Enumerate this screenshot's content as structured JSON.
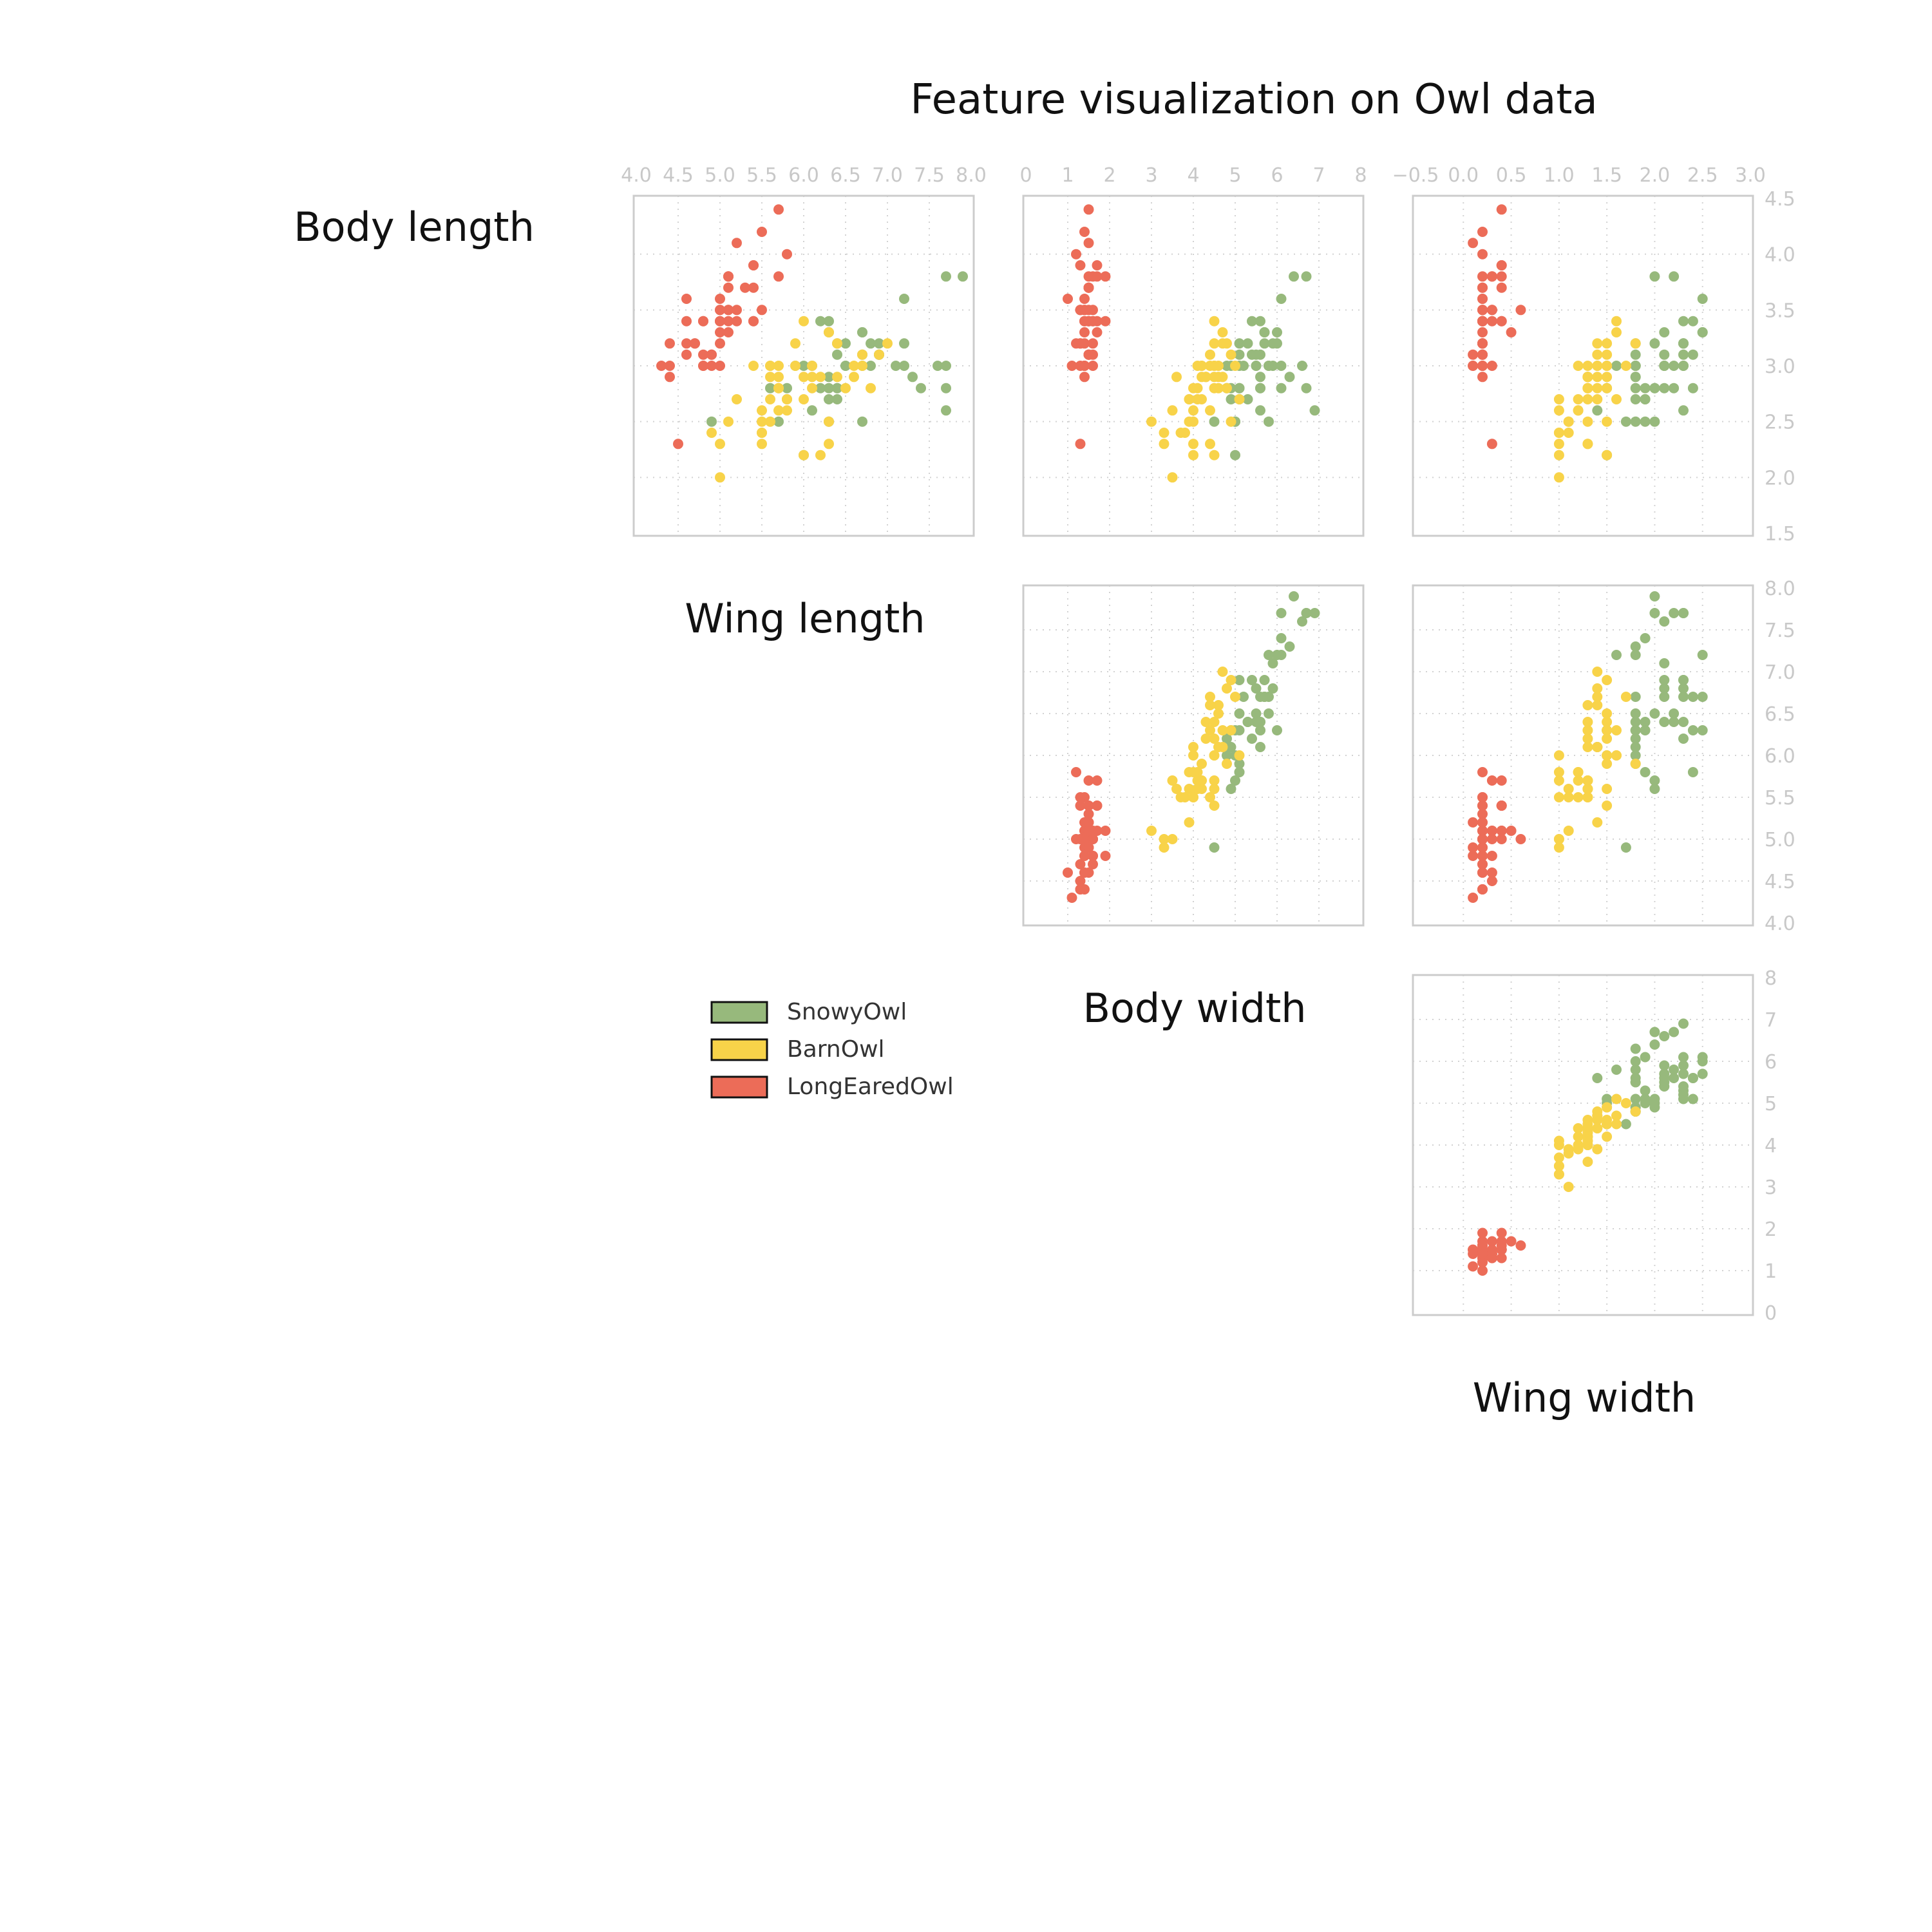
{
  "chart_data": {
    "type": "scatter",
    "title": "Feature visualization on Owl data",
    "variables": [
      "Body length",
      "Body width",
      "Wing length",
      "Wing width"
    ],
    "axes": {
      "x_body_length": {
        "ticks": [
          "4.0",
          "4.5",
          "5.0",
          "5.5",
          "6.0",
          "6.5",
          "7.0",
          "7.5",
          "8.0"
        ],
        "range": [
          4.0,
          8.0
        ]
      },
      "x_wing_length": {
        "ticks": [
          "0",
          "1",
          "2",
          "3",
          "4",
          "5",
          "6",
          "7",
          "8"
        ],
        "range": [
          0,
          8
        ]
      },
      "x_wing_width": {
        "ticks": [
          "−0.5",
          "0.0",
          "0.5",
          "1.0",
          "1.5",
          "2.0",
          "2.5",
          "3.0"
        ],
        "range": [
          -0.5,
          3.0
        ]
      },
      "y_body_width": {
        "ticks": [
          "1.5",
          "2.0",
          "2.5",
          "3.0",
          "3.5",
          "4.0",
          "4.5"
        ],
        "range": [
          1.5,
          4.5
        ]
      },
      "y_body_length": {
        "ticks": [
          "4.0",
          "4.5",
          "5.0",
          "5.5",
          "6.0",
          "6.5",
          "7.0",
          "7.5",
          "8.0"
        ],
        "range": [
          4.0,
          8.0
        ]
      },
      "y_wing_length": {
        "ticks": [
          "0",
          "1",
          "2",
          "3",
          "4",
          "5",
          "6",
          "7",
          "8"
        ],
        "range": [
          0,
          8
        ]
      }
    },
    "panels": [
      {
        "x": "Body length",
        "y": "Body width",
        "xaxis": "x_body_length",
        "yaxis": "y_body_width"
      },
      {
        "x": "Wing length",
        "y": "Body width",
        "xaxis": "x_wing_length",
        "yaxis": "y_body_width"
      },
      {
        "x": "Wing width",
        "y": "Body width",
        "xaxis": "x_wing_width",
        "yaxis": "y_body_width"
      },
      {
        "x": "Wing length",
        "y": "Body length",
        "xaxis": "x_wing_length",
        "yaxis": "y_body_length"
      },
      {
        "x": "Wing width",
        "y": "Body length",
        "xaxis": "x_wing_width",
        "yaxis": "y_body_length"
      },
      {
        "x": "Wing width",
        "y": "Wing length",
        "xaxis": "x_wing_width",
        "yaxis": "y_wing_length"
      }
    ],
    "diagonal_labels": [
      "Body length",
      "Wing length",
      "Body width",
      "Wing width"
    ],
    "grid": true,
    "legend_position": "left of lower panels",
    "series": [
      {
        "name": "SnowyOwl",
        "color": "#97b97c",
        "points": [
          [
            6.3,
            3.3,
            6.0,
            2.5
          ],
          [
            5.8,
            2.7,
            5.1,
            1.9
          ],
          [
            7.1,
            3.0,
            5.9,
            2.1
          ],
          [
            6.3,
            2.9,
            5.6,
            1.8
          ],
          [
            6.5,
            3.0,
            5.8,
            2.2
          ],
          [
            7.6,
            3.0,
            6.6,
            2.1
          ],
          [
            4.9,
            2.5,
            4.5,
            1.7
          ],
          [
            7.3,
            2.9,
            6.3,
            1.8
          ],
          [
            6.7,
            2.5,
            5.8,
            1.8
          ],
          [
            7.2,
            3.6,
            6.1,
            2.5
          ],
          [
            6.5,
            3.2,
            5.1,
            2.0
          ],
          [
            6.4,
            2.7,
            5.3,
            1.9
          ],
          [
            6.8,
            3.0,
            5.5,
            2.1
          ],
          [
            5.7,
            2.5,
            5.0,
            2.0
          ],
          [
            5.8,
            2.8,
            5.1,
            2.4
          ],
          [
            6.4,
            3.2,
            5.3,
            2.3
          ],
          [
            6.5,
            3.0,
            5.5,
            1.8
          ],
          [
            7.7,
            3.8,
            6.7,
            2.2
          ],
          [
            7.7,
            2.6,
            6.9,
            2.3
          ],
          [
            6.0,
            2.2,
            5.0,
            1.5
          ],
          [
            6.9,
            3.2,
            5.7,
            2.3
          ],
          [
            5.6,
            2.8,
            4.9,
            2.0
          ],
          [
            7.7,
            2.8,
            6.7,
            2.0
          ],
          [
            6.3,
            2.7,
            4.9,
            1.8
          ],
          [
            6.7,
            3.3,
            5.7,
            2.1
          ],
          [
            7.2,
            3.2,
            6.0,
            1.8
          ],
          [
            6.2,
            2.8,
            4.8,
            1.8
          ],
          [
            6.1,
            3.0,
            4.9,
            1.8
          ],
          [
            6.4,
            2.8,
            5.6,
            2.1
          ],
          [
            7.2,
            3.0,
            5.8,
            1.6
          ],
          [
            7.4,
            2.8,
            6.1,
            1.9
          ],
          [
            7.9,
            3.8,
            6.4,
            2.0
          ],
          [
            6.4,
            2.8,
            5.6,
            2.2
          ],
          [
            6.3,
            2.8,
            5.1,
            1.5
          ],
          [
            6.1,
            2.6,
            5.6,
            1.4
          ],
          [
            7.7,
            3.0,
            6.1,
            2.3
          ],
          [
            6.3,
            3.4,
            5.6,
            2.4
          ],
          [
            6.4,
            3.1,
            5.5,
            1.8
          ],
          [
            6.0,
            3.0,
            4.8,
            1.8
          ],
          [
            6.9,
            3.1,
            5.4,
            2.1
          ],
          [
            6.7,
            3.1,
            5.6,
            2.4
          ],
          [
            6.9,
            3.1,
            5.1,
            2.3
          ],
          [
            6.8,
            3.2,
            5.9,
            2.3
          ],
          [
            6.7,
            3.3,
            5.7,
            2.5
          ],
          [
            6.7,
            3.0,
            5.2,
            2.3
          ],
          [
            6.3,
            2.5,
            5.0,
            1.9
          ],
          [
            6.2,
            3.4,
            5.4,
            2.3
          ],
          [
            5.9,
            3.0,
            5.1,
            1.8
          ]
        ]
      },
      {
        "name": "BarnOwl",
        "color": "#f8d349",
        "points": [
          [
            7.0,
            3.2,
            4.7,
            1.4
          ],
          [
            6.4,
            3.2,
            4.5,
            1.5
          ],
          [
            6.9,
            3.1,
            4.9,
            1.5
          ],
          [
            5.5,
            2.3,
            4.0,
            1.3
          ],
          [
            6.5,
            2.8,
            4.6,
            1.5
          ],
          [
            5.7,
            2.8,
            4.5,
            1.3
          ],
          [
            6.3,
            3.3,
            4.7,
            1.6
          ],
          [
            4.9,
            2.4,
            3.3,
            1.0
          ],
          [
            6.6,
            2.9,
            4.6,
            1.3
          ],
          [
            5.2,
            2.7,
            3.9,
            1.4
          ],
          [
            5.0,
            2.0,
            3.5,
            1.0
          ],
          [
            5.9,
            3.0,
            4.2,
            1.5
          ],
          [
            6.0,
            2.2,
            4.0,
            1.0
          ],
          [
            6.1,
            2.9,
            4.7,
            1.4
          ],
          [
            5.6,
            2.9,
            3.6,
            1.3
          ],
          [
            6.7,
            3.1,
            4.4,
            1.4
          ],
          [
            5.6,
            3.0,
            4.5,
            1.5
          ],
          [
            5.8,
            2.7,
            4.1,
            1.0
          ],
          [
            6.2,
            2.2,
            4.5,
            1.5
          ],
          [
            5.6,
            2.5,
            3.9,
            1.1
          ],
          [
            5.9,
            3.2,
            4.8,
            1.8
          ],
          [
            6.1,
            2.8,
            4.0,
            1.3
          ],
          [
            6.3,
            2.5,
            4.9,
            1.5
          ],
          [
            6.4,
            2.9,
            4.3,
            1.3
          ],
          [
            6.6,
            3.0,
            4.4,
            1.4
          ],
          [
            6.8,
            2.8,
            4.8,
            1.4
          ],
          [
            6.7,
            3.0,
            5.0,
            1.7
          ],
          [
            6.0,
            2.9,
            4.5,
            1.5
          ],
          [
            5.7,
            2.6,
            3.5,
            1.0
          ],
          [
            5.5,
            2.4,
            3.8,
            1.1
          ],
          [
            5.5,
            2.4,
            3.7,
            1.0
          ],
          [
            5.8,
            2.7,
            3.9,
            1.2
          ],
          [
            6.0,
            2.7,
            5.1,
            1.6
          ],
          [
            5.4,
            3.0,
            4.5,
            1.5
          ],
          [
            6.0,
            3.4,
            4.5,
            1.6
          ],
          [
            6.3,
            2.3,
            4.4,
            1.3
          ],
          [
            5.6,
            3.0,
            4.1,
            1.3
          ],
          [
            5.5,
            2.5,
            4.0,
            1.3
          ],
          [
            5.5,
            2.6,
            4.4,
            1.2
          ],
          [
            6.1,
            3.0,
            4.6,
            1.4
          ],
          [
            5.8,
            2.6,
            4.0,
            1.2
          ],
          [
            5.0,
            2.3,
            3.3,
            1.0
          ],
          [
            5.6,
            2.7,
            4.2,
            1.3
          ],
          [
            5.7,
            3.0,
            4.2,
            1.2
          ],
          [
            5.7,
            2.9,
            4.2,
            1.3
          ],
          [
            6.2,
            2.9,
            4.3,
            1.3
          ],
          [
            5.1,
            2.5,
            3.0,
            1.1
          ],
          [
            5.7,
            2.8,
            4.1,
            1.3
          ]
        ]
      },
      {
        "name": "LongEaredOwl",
        "color": "#ec6c58",
        "points": [
          [
            5.1,
            3.5,
            1.4,
            0.2
          ],
          [
            4.9,
            3.0,
            1.4,
            0.2
          ],
          [
            4.7,
            3.2,
            1.3,
            0.2
          ],
          [
            4.6,
            3.1,
            1.5,
            0.2
          ],
          [
            5.0,
            3.6,
            1.4,
            0.2
          ],
          [
            5.4,
            3.9,
            1.7,
            0.4
          ],
          [
            4.6,
            3.4,
            1.4,
            0.3
          ],
          [
            5.0,
            3.4,
            1.5,
            0.2
          ],
          [
            4.4,
            2.9,
            1.4,
            0.2
          ],
          [
            4.9,
            3.1,
            1.5,
            0.1
          ],
          [
            5.4,
            3.7,
            1.5,
            0.2
          ],
          [
            4.8,
            3.4,
            1.6,
            0.2
          ],
          [
            4.8,
            3.0,
            1.4,
            0.1
          ],
          [
            4.3,
            3.0,
            1.1,
            0.1
          ],
          [
            5.8,
            4.0,
            1.2,
            0.2
          ],
          [
            5.7,
            4.4,
            1.5,
            0.4
          ],
          [
            5.4,
            3.9,
            1.3,
            0.4
          ],
          [
            5.1,
            3.5,
            1.4,
            0.3
          ],
          [
            5.7,
            3.8,
            1.7,
            0.3
          ],
          [
            5.1,
            3.8,
            1.5,
            0.3
          ],
          [
            5.4,
            3.4,
            1.7,
            0.2
          ],
          [
            5.1,
            3.7,
            1.5,
            0.4
          ],
          [
            4.6,
            3.6,
            1.0,
            0.2
          ],
          [
            5.1,
            3.3,
            1.7,
            0.5
          ],
          [
            4.8,
            3.4,
            1.9,
            0.2
          ],
          [
            5.0,
            3.0,
            1.6,
            0.2
          ],
          [
            5.0,
            3.4,
            1.6,
            0.4
          ],
          [
            5.2,
            3.5,
            1.5,
            0.2
          ],
          [
            5.2,
            3.4,
            1.4,
            0.2
          ],
          [
            4.7,
            3.2,
            1.6,
            0.2
          ],
          [
            4.8,
            3.1,
            1.6,
            0.2
          ],
          [
            5.4,
            3.4,
            1.5,
            0.4
          ],
          [
            5.2,
            4.1,
            1.5,
            0.1
          ],
          [
            5.5,
            4.2,
            1.4,
            0.2
          ],
          [
            4.9,
            3.1,
            1.5,
            0.2
          ],
          [
            5.0,
            3.2,
            1.2,
            0.2
          ],
          [
            5.5,
            3.5,
            1.3,
            0.2
          ],
          [
            4.4,
            3.0,
            1.3,
            0.2
          ],
          [
            5.1,
            3.4,
            1.5,
            0.2
          ],
          [
            5.0,
            3.5,
            1.3,
            0.3
          ],
          [
            4.5,
            2.3,
            1.3,
            0.3
          ],
          [
            4.4,
            3.2,
            1.3,
            0.2
          ],
          [
            5.0,
            3.5,
            1.6,
            0.6
          ],
          [
            5.1,
            3.8,
            1.9,
            0.4
          ],
          [
            4.8,
            3.0,
            1.4,
            0.3
          ],
          [
            5.1,
            3.8,
            1.6,
            0.2
          ],
          [
            4.6,
            3.2,
            1.4,
            0.2
          ],
          [
            5.3,
            3.7,
            1.5,
            0.2
          ],
          [
            5.0,
            3.3,
            1.4,
            0.2
          ]
        ]
      }
    ]
  }
}
